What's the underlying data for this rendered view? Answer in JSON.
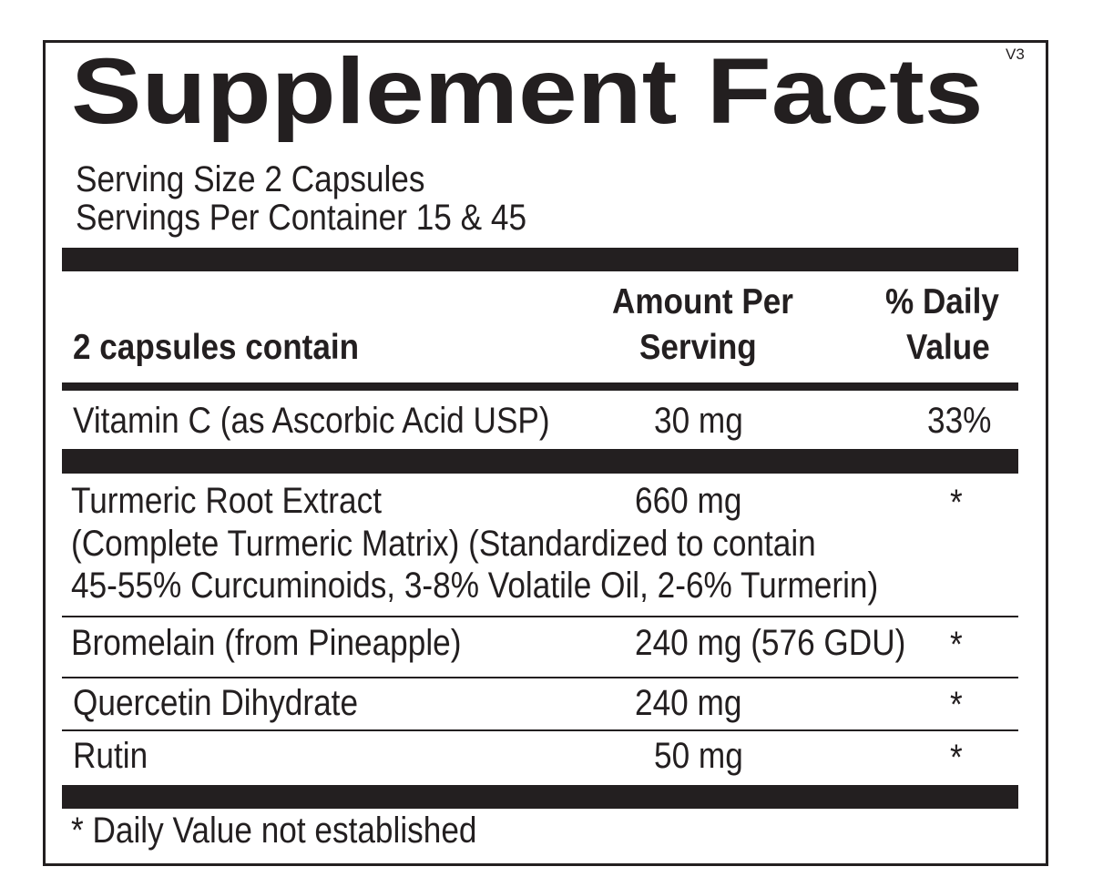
{
  "title": "Supplement Facts",
  "version": "V3",
  "serving_size": "Serving Size 2 Capsules",
  "servings_per_container": "Servings Per Container 15 & 45",
  "header": {
    "col1": "2 capsules contain",
    "col2_line1": "Amount Per",
    "col2_line2": "Serving",
    "col3_line1": "% Daily",
    "col3_line2": "Value"
  },
  "rows": [
    {
      "name": "Vitamin C (as Ascorbic Acid USP)",
      "amount": "30 mg",
      "dv": "33%"
    },
    {
      "name": "Turmeric Root Extract",
      "name_line2": "(Complete Turmeric Matrix) (Standardized to contain",
      "name_line3": "45-55% Curcuminoids, 3-8% Volatile Oil, 2-6% Turmerin)",
      "amount": "660 mg",
      "dv": "*"
    },
    {
      "name": "Bromelain (from Pineapple)",
      "amount": "240 mg (576 GDU)",
      "dv": "*"
    },
    {
      "name": "Quercetin Dihydrate",
      "amount": "240 mg",
      "dv": "*"
    },
    {
      "name": "Rutin",
      "amount": "50 mg",
      "dv": "*"
    }
  ],
  "footnote": "* Daily Value not established"
}
